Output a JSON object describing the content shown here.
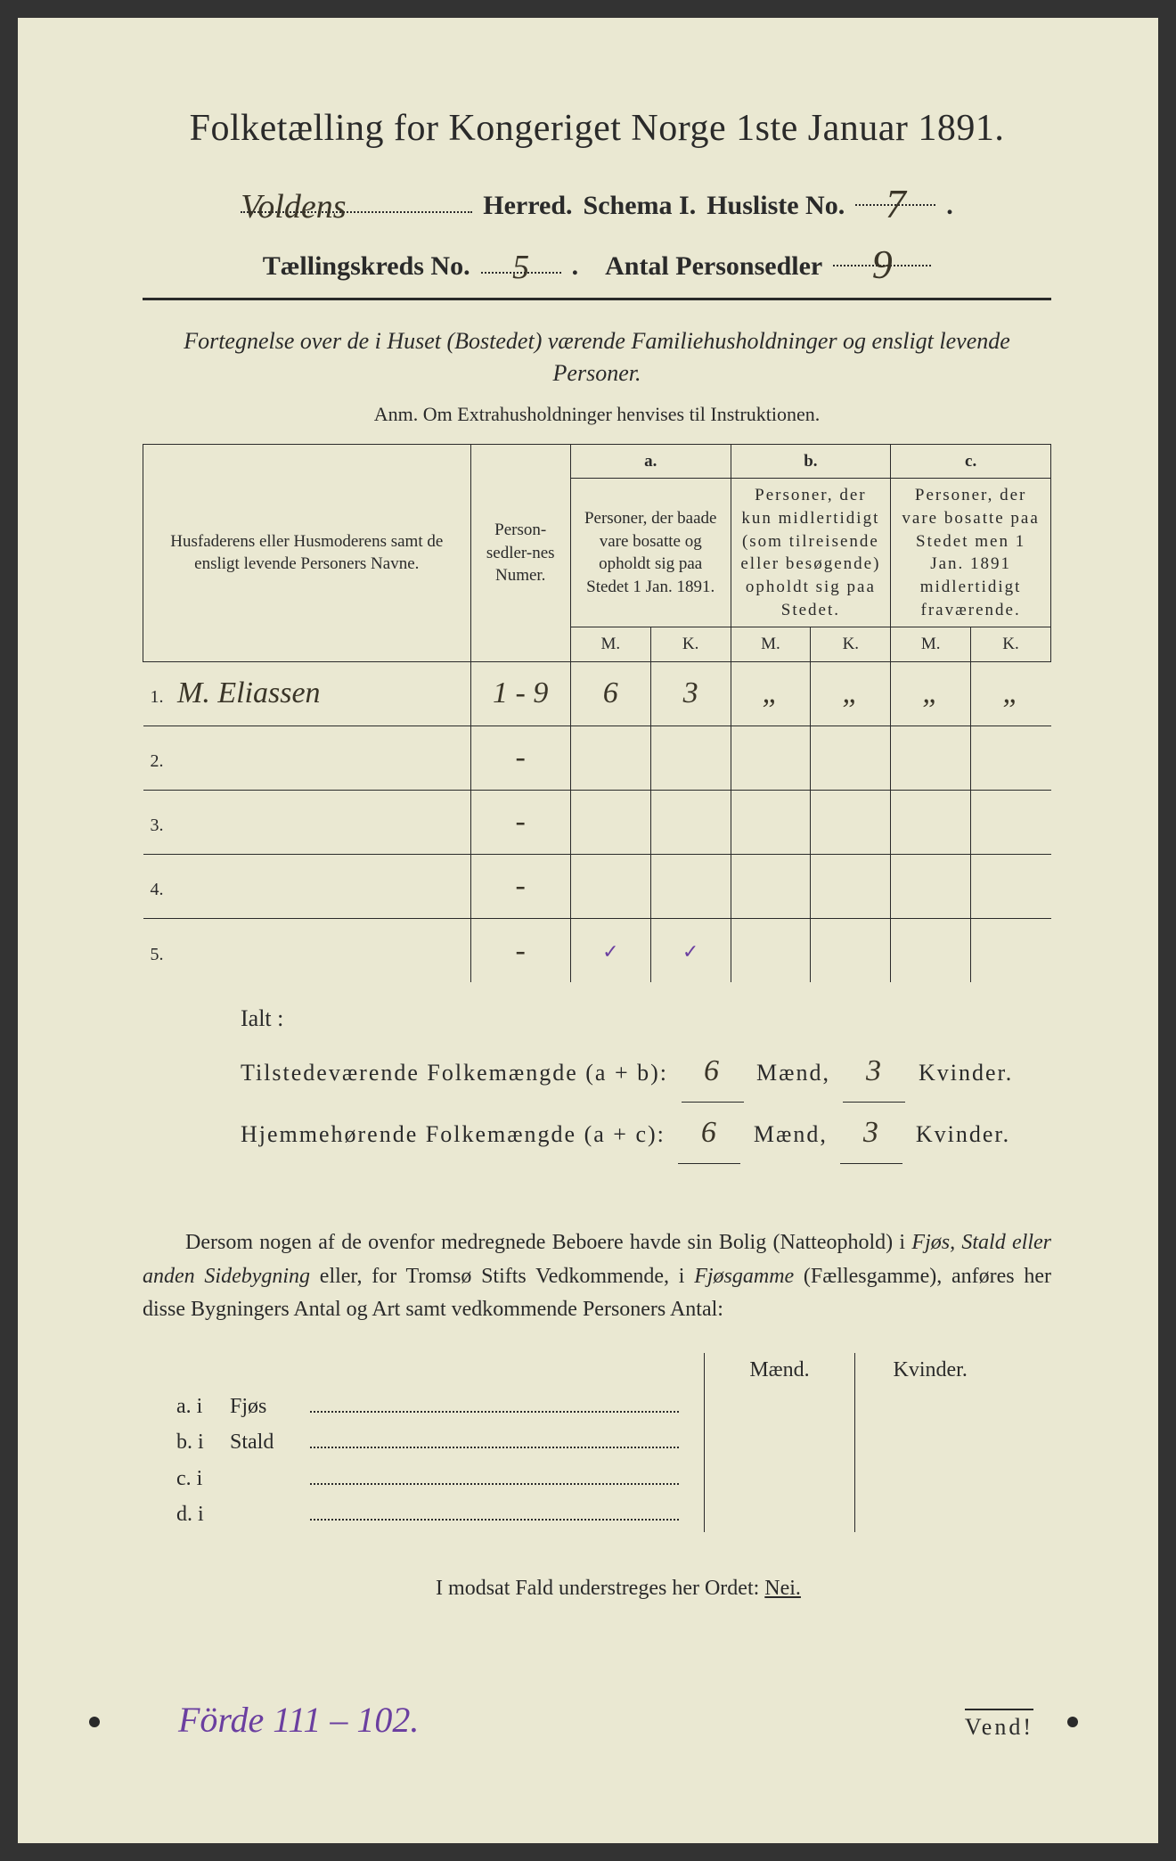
{
  "title": "Folketælling for Kongeriget Norge 1ste Januar 1891.",
  "header": {
    "herred_value": "Voldens",
    "herred_label": "Herred.",
    "schema_label": "Schema I.",
    "husliste_label": "Husliste No.",
    "husliste_value": "7",
    "kreds_label": "Tællingskreds No.",
    "kreds_value": "5",
    "antal_label": "Antal Personsedler",
    "antal_value": "9"
  },
  "subtitle": "Fortegnelse over de i Huset (Bostedet) værende Familiehusholdninger og ensligt levende Personer.",
  "anm": "Anm.   Om Extrahusholdninger henvises til Instruktionen.",
  "table": {
    "col_name": "Husfaderens eller Husmoderens samt de ensligt levende Personers Navne.",
    "col_num": "Person-sedler-nes Numer.",
    "grp_a": "a.",
    "grp_a_text": "Personer, der baade vare bosatte og opholdt sig paa Stedet 1 Jan. 1891.",
    "grp_b": "b.",
    "grp_b_text": "Personer, der kun midlertidigt (som tilreisende eller besøgende) opholdt sig paa Stedet.",
    "grp_c": "c.",
    "grp_c_text": "Personer, der vare bosatte paa Stedet men 1 Jan. 1891 midlertidigt fraværende.",
    "M": "M.",
    "K": "K.",
    "rows": [
      {
        "idx": "1.",
        "name": "M. Eliassen",
        "num": "1 - 9",
        "aM": "6",
        "aK": "3",
        "bM": "„",
        "bK": "„",
        "cM": "„",
        "cK": "„"
      },
      {
        "idx": "2.",
        "name": "",
        "num": "-",
        "aM": "",
        "aK": "",
        "bM": "",
        "bK": "",
        "cM": "",
        "cK": ""
      },
      {
        "idx": "3.",
        "name": "",
        "num": "-",
        "aM": "",
        "aK": "",
        "bM": "",
        "bK": "",
        "cM": "",
        "cK": ""
      },
      {
        "idx": "4.",
        "name": "",
        "num": "-",
        "aM": "",
        "aK": "",
        "bM": "",
        "bK": "",
        "cM": "",
        "cK": ""
      },
      {
        "idx": "5.",
        "name": "",
        "num": "-",
        "aM": "✓",
        "aK": "✓",
        "bM": "",
        "bK": "",
        "cM": "",
        "cK": ""
      }
    ]
  },
  "ialt": "Ialt :",
  "sums": {
    "line1_label": "Tilstedeværende Folkemængde (a + b):",
    "line1_m": "6",
    "line1_k": "3",
    "line2_label": "Hjemmehørende Folkemængde (a + c):",
    "line2_m": "6",
    "line2_k": "3",
    "maend": "Mænd,",
    "kvinder": "Kvinder."
  },
  "para": {
    "t1": "Dersom nogen af de ovenfor medregnede Beboere havde sin Bolig (Natteophold) i ",
    "it1": "Fjøs, Stald eller anden Sidebygning",
    "t2": " eller, for Tromsø Stifts Vedkommende, i ",
    "it2": "Fjøsgamme",
    "t3": " (Fællesgamme), anføres her disse Bygningers Antal og Art samt vedkommende Personers Antal:"
  },
  "lower": {
    "maend": "Mænd.",
    "kvinder": "Kvinder.",
    "rows": [
      {
        "l": "a.  i",
        "label": "Fjøs"
      },
      {
        "l": "b.  i",
        "label": "Stald"
      },
      {
        "l": "c.  i",
        "label": ""
      },
      {
        "l": "d.  i",
        "label": ""
      }
    ]
  },
  "nei": {
    "text": "I modsat Fald understreges her Ordet: ",
    "word": "Nei."
  },
  "vend": "Vend!",
  "foot": "Förde 111 – 102.",
  "colors": {
    "paper": "#eae8d2",
    "ink": "#2a2a2a",
    "handwriting": "#3a3528",
    "purple": "#6b3fa0"
  }
}
